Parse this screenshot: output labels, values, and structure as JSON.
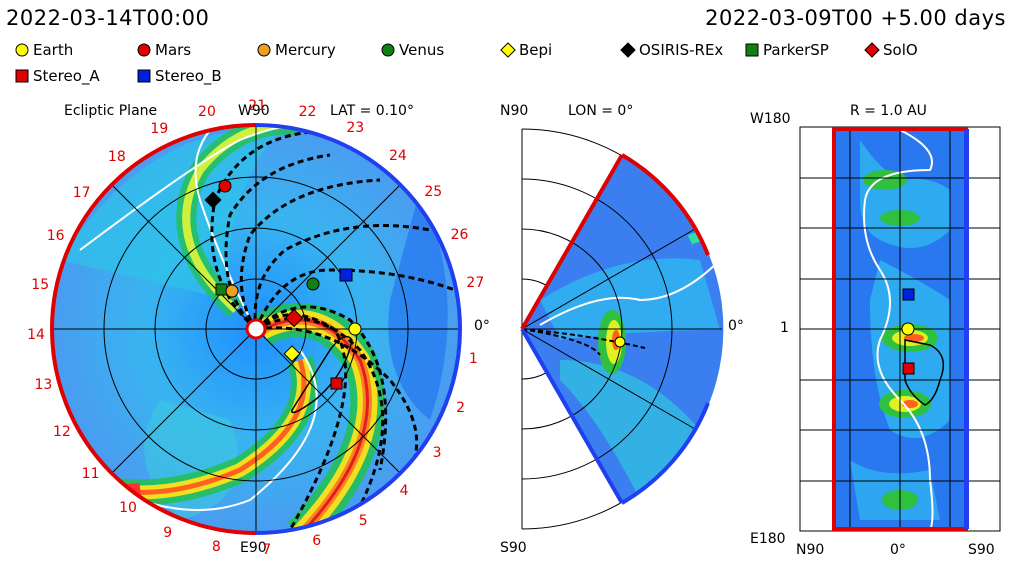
{
  "header": {
    "left_time": "2022-03-14T00:00",
    "right_time": "2022-03-09T00 +5.00 days"
  },
  "legend": [
    {
      "label": "Earth",
      "shape": "circle",
      "color": "#ffff00"
    },
    {
      "label": "Mars",
      "shape": "circle",
      "color": "#e00000"
    },
    {
      "label": "Mercury",
      "shape": "circle",
      "color": "#f0a020"
    },
    {
      "label": "Venus",
      "shape": "circle",
      "color": "#108010"
    },
    {
      "label": "Bepi",
      "shape": "diamond",
      "color": "#ffff00"
    },
    {
      "label": "OSIRIS-REx",
      "shape": "diamond",
      "color": "#000000"
    },
    {
      "label": "ParkerSP",
      "shape": "square",
      "color": "#108010"
    },
    {
      "label": "SolO",
      "shape": "diamond",
      "color": "#e00000"
    },
    {
      "label": "Stereo_A",
      "shape": "square",
      "color": "#e00000"
    },
    {
      "label": "Stereo_B",
      "shape": "square",
      "color": "#0020e0"
    }
  ],
  "ecliptic": {
    "title": "Ecliptic Plane",
    "lat_label": "LAT = 0.10°",
    "top_label": "W90",
    "bottom_label": "E90",
    "right_label": "0°",
    "hour_labels": [
      "1",
      "2",
      "3",
      "4",
      "5",
      "6",
      "7",
      "8",
      "9",
      "10",
      "11",
      "12",
      "13",
      "14",
      "15",
      "16",
      "17",
      "18",
      "19",
      "20",
      "21",
      "22",
      "23",
      "24",
      "25",
      "26",
      "27"
    ]
  },
  "meridional": {
    "lon_label": "LON = 0°",
    "top_label": "N90",
    "bottom_label": "S90",
    "right_label": "0°"
  },
  "synoptic": {
    "r_label": "R = 1.0 AU",
    "top_left": "W180",
    "bottom_left": "E180",
    "mid_left": "1",
    "x_labels": [
      "N90",
      "0°",
      "S90"
    ]
  }
}
